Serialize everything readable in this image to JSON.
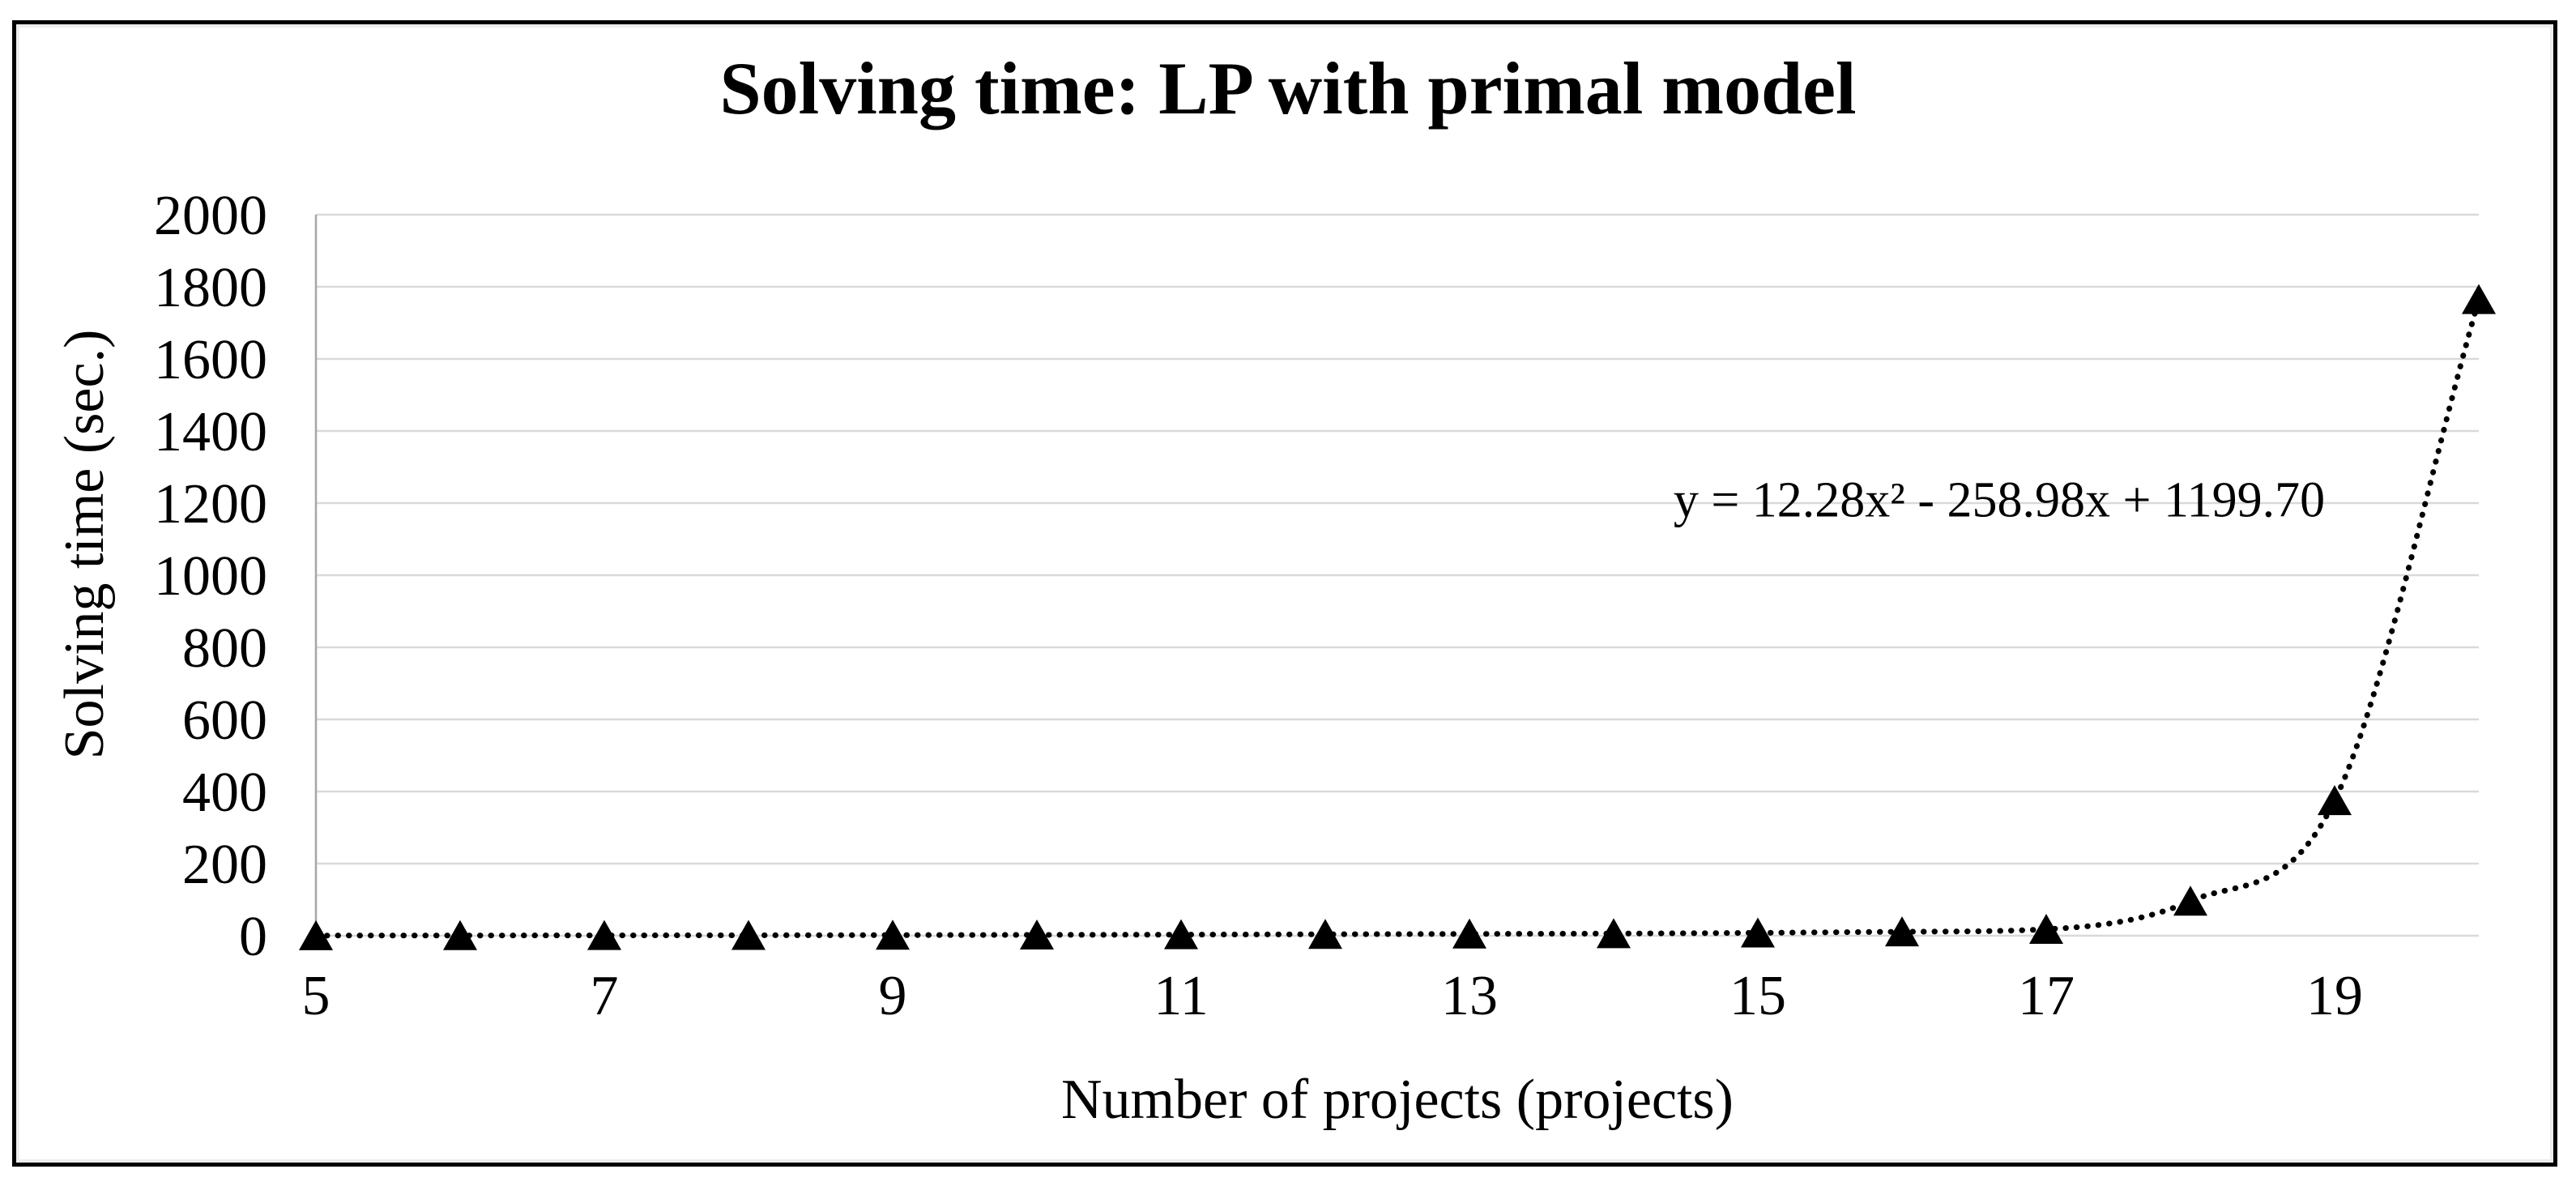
{
  "chart_data": {
    "type": "line",
    "title": "Solving time: LP with primal model",
    "xlabel": "Number of projects (projects)",
    "ylabel": "Solving time (sec.)",
    "x": [
      5,
      6,
      7,
      8,
      9,
      10,
      11,
      12,
      13,
      14,
      15,
      16,
      17,
      18,
      19,
      20
    ],
    "values": [
      0.4,
      0.6,
      0.9,
      1.2,
      1.7,
      2.3,
      3,
      4,
      5,
      6,
      8,
      11,
      18,
      96,
      375,
      1765
    ],
    "x_tick_labels": [
      5,
      7,
      9,
      11,
      13,
      15,
      17,
      19
    ],
    "y_tick_labels": [
      0,
      200,
      400,
      600,
      800,
      1000,
      1200,
      1400,
      1600,
      1800,
      2000
    ],
    "xlim": [
      5,
      20
    ],
    "ylim": [
      0,
      2000
    ],
    "grid": "horizontal",
    "legend": "none",
    "marker": "filled-triangle",
    "line_style": "dotted",
    "trendline_label": "y = 12.28x² - 258.98x + 1199.70",
    "colors": {
      "series": "#000000",
      "marker": "#000000",
      "gridline": "#d9d9d9",
      "axis_line": "#a6a6a6",
      "text": "#000000",
      "frame": "#000000",
      "background": "#ffffff"
    }
  }
}
